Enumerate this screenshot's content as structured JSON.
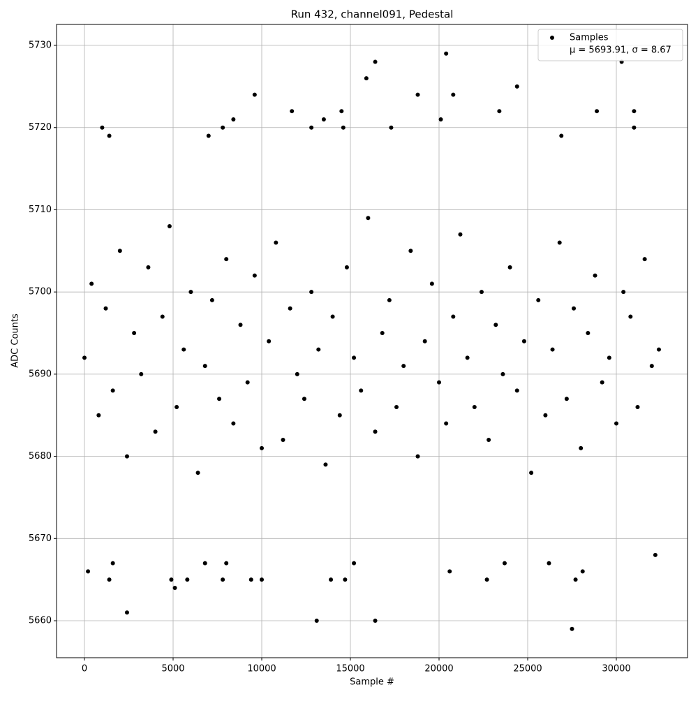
{
  "chart_data": {
    "type": "scatter",
    "title": "Run 432, channel091, Pedestal",
    "x_label": "Sample #",
    "y_label": "ADC Counts",
    "xlim": [
      -1575,
      34016
    ],
    "ylim": [
      5655.5,
      5732.55
    ],
    "xticks": [
      0,
      5000,
      10000,
      15000,
      20000,
      25000,
      30000
    ],
    "yticks": [
      5660,
      5670,
      5680,
      5690,
      5700,
      5710,
      5720,
      5730
    ],
    "grid": true,
    "legend": "upper right",
    "series": [
      {
        "name": "Samples",
        "stats_label": "μ = 5693.91, σ = 8.67",
        "color": "#000000",
        "x": [
          0,
          400,
          800,
          1200,
          1600,
          2000,
          2400,
          2800,
          3200,
          3600,
          4000,
          4400,
          4800,
          5200,
          5600,
          6000,
          6400,
          6800,
          7200,
          7600,
          8000,
          8400,
          8800,
          9200,
          9600,
          10000,
          10400,
          10800,
          11200,
          11600,
          12000,
          12400,
          12800,
          13200,
          13600,
          14000,
          14400,
          14800,
          15200,
          15600,
          16000,
          16400,
          16800,
          17200,
          17600,
          18000,
          18400,
          18800,
          19200,
          19600,
          20000,
          20400,
          20800,
          21200,
          21600,
          22000,
          22400,
          22800,
          23200,
          23600,
          24000,
          24400,
          24800,
          25200,
          25600,
          26000,
          26400,
          26800,
          27200,
          27600,
          28000,
          28400,
          28800,
          29200,
          29600,
          30000,
          30400,
          30800,
          31200,
          31600,
          32000,
          32400,
          2400,
          13100,
          16400,
          27500,
          16400,
          20400,
          30300,
          15900,
          9600,
          18800,
          20800,
          24400,
          5100,
          200,
          1000,
          1400,
          7800,
          8400,
          11700,
          14500,
          20100,
          23400,
          28900,
          31000,
          31000,
          14600,
          13500,
          12800,
          17300,
          7000,
          26900,
          1400,
          7800,
          9400,
          10000,
          22700,
          27700,
          5800,
          4900,
          14700,
          13900,
          1600,
          8000,
          15200,
          6800,
          23700,
          26200,
          28100,
          20600,
          32200
        ],
        "values": [
          5692,
          5701,
          5685,
          5698,
          5688,
          5705,
          5680,
          5695,
          5690,
          5703,
          5683,
          5697,
          5708,
          5686,
          5693,
          5700,
          5678,
          5691,
          5699,
          5687,
          5704,
          5684,
          5696,
          5689,
          5702,
          5681,
          5694,
          5706,
          5682,
          5698,
          5690,
          5687,
          5700,
          5693,
          5679,
          5697,
          5685,
          5703,
          5692,
          5688,
          5709,
          5683,
          5695,
          5699,
          5686,
          5691,
          5705,
          5680,
          5694,
          5701,
          5689,
          5684,
          5697,
          5707,
          5692,
          5686,
          5700,
          5682,
          5696,
          5690,
          5703,
          5688,
          5694,
          5678,
          5699,
          5685,
          5693,
          5706,
          5687,
          5698,
          5681,
          5695,
          5702,
          5689,
          5692,
          5684,
          5700,
          5697,
          5686,
          5704,
          5691,
          5693,
          5661,
          5660,
          5660,
          5659,
          5728,
          5729,
          5728,
          5726,
          5724,
          5724,
          5724,
          5725,
          5664,
          5666,
          5720,
          5719,
          5720,
          5721,
          5722,
          5722,
          5721,
          5722,
          5722,
          5722,
          5720,
          5720,
          5721,
          5720,
          5720,
          5719,
          5719,
          5665,
          5665,
          5665,
          5665,
          5665,
          5665,
          5665,
          5665,
          5665,
          5665,
          5667,
          5667,
          5667,
          5667,
          5667,
          5667,
          5666,
          5666,
          5668
        ]
      }
    ]
  }
}
